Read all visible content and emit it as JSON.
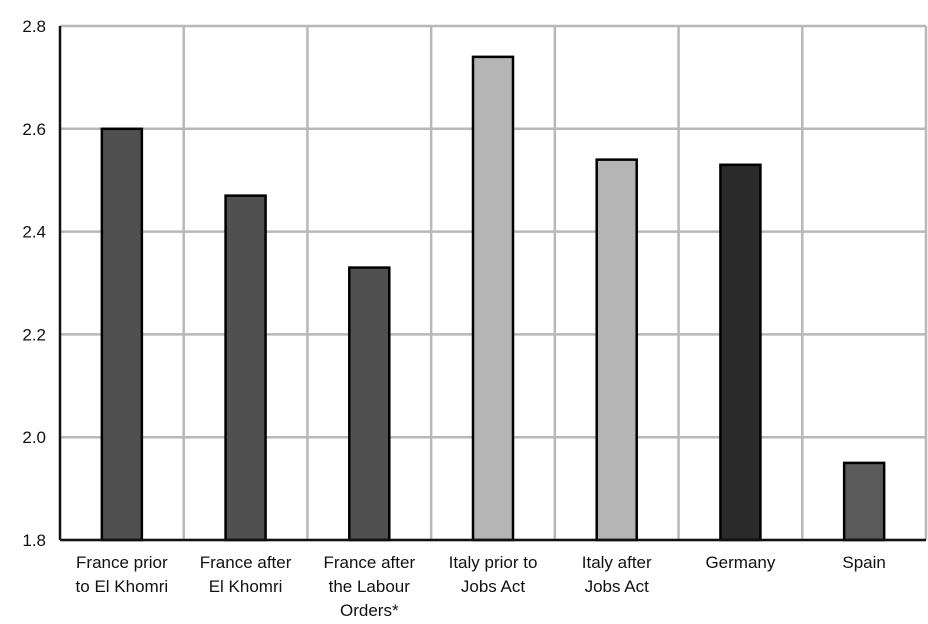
{
  "chart_data": {
    "type": "bar",
    "title": "",
    "xlabel": "",
    "ylabel": "",
    "ylim": [
      1.8,
      2.8
    ],
    "yticks": [
      "1.8",
      "2.0",
      "2.2",
      "2.4",
      "2.6",
      "2.8"
    ],
    "grid": true,
    "legend": "none",
    "categories": [
      {
        "lines": [
          "France   prior",
          "to El Khomri"
        ]
      },
      {
        "lines": [
          "France after",
          "El Khomri"
        ]
      },
      {
        "lines": [
          "France after",
          "the Labour",
          "Orders*"
        ]
      },
      {
        "lines": [
          "Italy prior to",
          "Jobs Act"
        ]
      },
      {
        "lines": [
          "Italy after",
          "Jobs Act"
        ]
      },
      {
        "lines": [
          "Germany"
        ]
      },
      {
        "lines": [
          "Spain"
        ]
      }
    ],
    "values": [
      2.6,
      2.47,
      2.33,
      2.74,
      2.54,
      2.53,
      1.95
    ],
    "colors": [
      "#505050",
      "#505050",
      "#505050",
      "#b5b5b5",
      "#b5b5b5",
      "#2a2a2a",
      "#5a5a5a"
    ],
    "gridColor": "#b8b8b8",
    "axisColor": "#111111"
  }
}
